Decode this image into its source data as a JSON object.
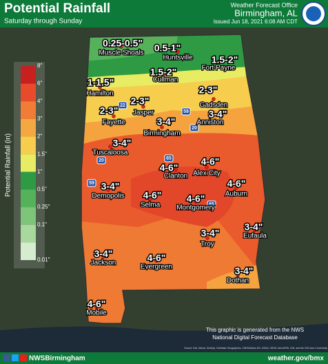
{
  "header": {
    "title": "Potential Rainfall",
    "subtitle": "Saturday through Sunday",
    "office_label": "Weather Forecast Office",
    "office": "Birmingham, AL",
    "issued": "Issued Jun 18, 2021 6:08 AM CDT"
  },
  "legend": {
    "title": "Potential Rainfall (in)",
    "entries": [
      {
        "label": "8\"",
        "color": "#c8201f"
      },
      {
        "label": "6\"",
        "color": "#e84b2b"
      },
      {
        "label": "4\"",
        "color": "#f07c36"
      },
      {
        "label": "3\"",
        "color": "#f5a741"
      },
      {
        "label": "2\"",
        "color": "#f6cd4d"
      },
      {
        "label": "1.5\"",
        "color": "#e8ec62"
      },
      {
        "label": "1\"",
        "color": "#2f9a44"
      },
      {
        "label": "0.5\"",
        "color": "#55b25a"
      },
      {
        "label": "0.25\"",
        "color": "#7fc579"
      },
      {
        "label": "0.1\"",
        "color": "#a9d89e"
      },
      {
        "label": "0.01\"",
        "color": "#d6ecce"
      }
    ]
  },
  "rain_labels": [
    "0.25-0.5\"",
    "0.5-1\"",
    "1.5-2\"",
    "1-1.5\"",
    "1.5-2\"",
    "2-3\"",
    "2-3\"",
    "2-3\"",
    "3-4\"",
    "3-4\"",
    "3-4\"",
    "3-4\"",
    "4-6\"",
    "4-6\"",
    "4-6\"",
    "4-6\"",
    "4-6\"",
    "3-4\"",
    "3-4\"",
    "3-4\"",
    "4-6\"",
    "3-4\"",
    "4-6\""
  ],
  "cities": [
    "Muscle Shoals",
    "Huntsville",
    "Fort Payne",
    "Cullman",
    "Hamilton",
    "Gadsden",
    "Jasper",
    "Fayette",
    "Anniston",
    "Birmingham",
    "Tuscaloosa",
    "Clanton",
    "Alex City",
    "Demopolis",
    "Auburn",
    "Selma",
    "Montgomery",
    "Troy",
    "Eufaula",
    "Jackson",
    "Evergreen",
    "Dothan",
    "Mobile"
  ],
  "interstates": [
    "22",
    "59",
    "20",
    "65",
    "59",
    "85",
    "20"
  ],
  "footer": {
    "note_line1": "This graphic is generated from the NWS",
    "note_line2": "National Digital Forecast Database",
    "social": "NWSBirmingham",
    "website": "weather.gov/bmx",
    "source": "Source: Esri, Maxar, GeoEye, Earthstar Geographics, CNES/Airbus DS, USDA, USGS, AeroGRID, IGN, and the GIS User Community"
  }
}
